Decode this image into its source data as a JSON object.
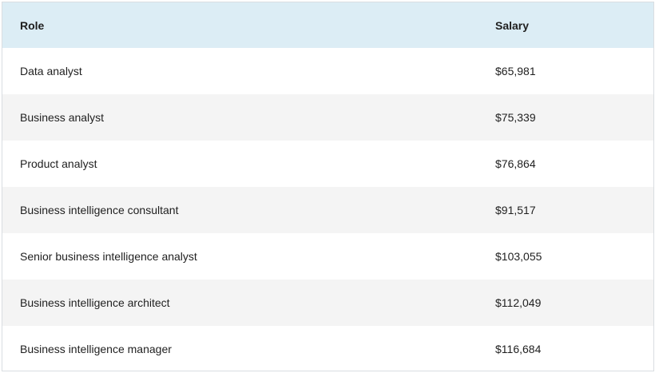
{
  "table": {
    "headers": {
      "role": "Role",
      "salary": "Salary"
    },
    "rows": [
      {
        "role": "Data analyst",
        "salary": "$65,981"
      },
      {
        "role": "Business analyst",
        "salary": "$75,339"
      },
      {
        "role": "Product analyst",
        "salary": "$76,864"
      },
      {
        "role": "Business intelligence consultant",
        "salary": "$91,517"
      },
      {
        "role": "Senior business intelligence analyst",
        "salary": "$103,055"
      },
      {
        "role": "Business intelligence architect",
        "salary": "$112,049"
      },
      {
        "role": "Business intelligence manager",
        "salary": "$116,684"
      }
    ]
  },
  "colors": {
    "header_bg": "#dcedf5",
    "row_alt_bg": "#f4f4f4",
    "border": "#d9dde1"
  }
}
